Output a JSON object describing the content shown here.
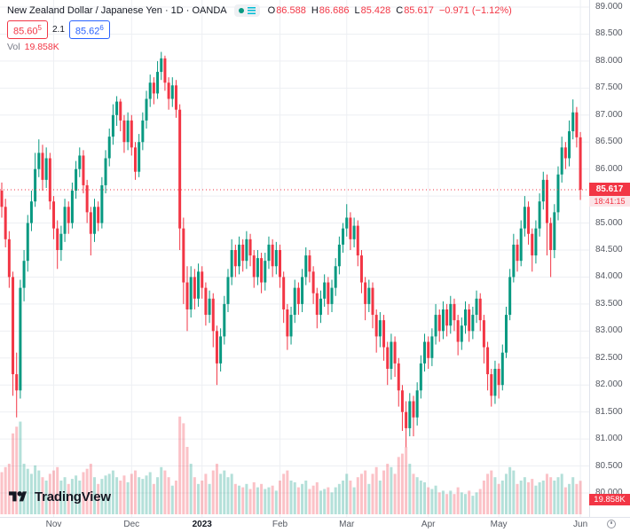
{
  "header": {
    "symbol_title": "New Zealand Dollar / Japanese Yen · 1D · OANDA",
    "ohlc": {
      "open_label": "O",
      "open": "86.588",
      "high_label": "H",
      "high": "86.686",
      "low_label": "L",
      "low": "85.428",
      "close_label": "C",
      "close": "85.617",
      "change": "−0.971 (−1.12%)"
    },
    "sell_price_main": "85.60",
    "sell_price_sup": "5",
    "spread": "2.1",
    "buy_price_main": "85.62",
    "buy_price_sup": "6",
    "volume_label": "Vol",
    "volume_value": "19.858K"
  },
  "price_axis_label": {
    "price": "85.617",
    "countdown": "18:41:15"
  },
  "volume_axis_label": "19.858K",
  "watermark": {
    "logo_text": "TradingView"
  },
  "icons": {
    "market_status": "market-open-dot-icon",
    "legend_menu": "legend-menu-icon",
    "clock": "clock-icon",
    "logo": "tradingview-logo"
  },
  "colors": {
    "up": "#089981",
    "down": "#f23645",
    "volume_up": "rgba(8,153,129,0.30)",
    "volume_down": "rgba(242,54,69,0.30)",
    "grid": "#edeff3",
    "accent_buy": "#2962ff",
    "axis_text": "#555962"
  },
  "chart_data": {
    "type": "candlestick",
    "title": "New Zealand Dollar / Japanese Yen, 1D, OANDA",
    "legend_position": "top-left",
    "grid": true,
    "current_price": 85.617,
    "current_volume_k": 19.858,
    "y_axis": {
      "min": 80.0,
      "max": 89.0,
      "step": 0.5,
      "tick_labels": [
        "89.000",
        "88.500",
        "88.000",
        "87.500",
        "87.000",
        "86.500",
        "86.000",
        "85.500",
        "85.000",
        "84.500",
        "84.000",
        "83.500",
        "83.000",
        "82.500",
        "82.000",
        "81.500",
        "81.000",
        "80.500",
        "80.000"
      ]
    },
    "x_axis": {
      "labels": [
        {
          "text": "Nov",
          "index": 14
        },
        {
          "text": "Dec",
          "index": 35
        },
        {
          "text": "2023",
          "index": 54,
          "bold": true
        },
        {
          "text": "Feb",
          "index": 75
        },
        {
          "text": "Mar",
          "index": 93
        },
        {
          "text": "Apr",
          "index": 115
        },
        {
          "text": "May",
          "index": 134
        },
        {
          "text": "Jun",
          "index": 156
        }
      ]
    },
    "candles_format": "[open, high, low, close, volume_k]",
    "candles": [
      [
        85.6,
        85.75,
        85.1,
        85.3,
        25
      ],
      [
        85.3,
        85.45,
        84.55,
        84.7,
        28
      ],
      [
        84.7,
        84.85,
        83.8,
        84.0,
        30
      ],
      [
        84.0,
        84.1,
        81.8,
        82.2,
        48
      ],
      [
        82.2,
        82.6,
        81.4,
        81.9,
        52
      ],
      [
        81.9,
        83.95,
        81.75,
        83.8,
        55
      ],
      [
        83.8,
        84.5,
        83.55,
        84.3,
        30
      ],
      [
        84.3,
        85.15,
        84.1,
        85.0,
        27
      ],
      [
        85.0,
        85.6,
        84.85,
        85.4,
        24
      ],
      [
        85.4,
        86.3,
        85.3,
        86.0,
        29
      ],
      [
        86.0,
        86.55,
        85.85,
        86.3,
        26
      ],
      [
        86.3,
        86.45,
        85.6,
        85.8,
        22
      ],
      [
        85.8,
        86.4,
        85.65,
        86.2,
        20
      ],
      [
        86.2,
        86.3,
        85.25,
        85.4,
        24
      ],
      [
        85.4,
        85.5,
        84.7,
        84.9,
        26
      ],
      [
        84.9,
        85.05,
        84.15,
        84.5,
        28
      ],
      [
        84.5,
        84.95,
        84.3,
        84.8,
        20
      ],
      [
        84.8,
        85.45,
        84.65,
        85.3,
        22
      ],
      [
        85.3,
        85.4,
        84.8,
        85.0,
        18
      ],
      [
        85.0,
        85.75,
        84.9,
        85.6,
        21
      ],
      [
        85.6,
        86.15,
        85.45,
        86.0,
        23
      ],
      [
        86.0,
        86.4,
        85.85,
        86.25,
        20
      ],
      [
        86.25,
        86.35,
        85.55,
        85.7,
        25
      ],
      [
        85.7,
        85.8,
        85.0,
        85.2,
        27
      ],
      [
        85.2,
        85.3,
        84.4,
        84.8,
        30
      ],
      [
        84.8,
        85.45,
        84.65,
        85.3,
        22
      ],
      [
        85.3,
        85.4,
        84.85,
        85.0,
        18
      ],
      [
        85.0,
        85.85,
        84.9,
        85.7,
        21
      ],
      [
        85.7,
        86.35,
        85.55,
        86.2,
        23
      ],
      [
        86.2,
        86.75,
        86.05,
        86.6,
        24
      ],
      [
        86.6,
        87.2,
        86.45,
        87.0,
        26
      ],
      [
        87.0,
        87.35,
        86.8,
        87.25,
        22
      ],
      [
        87.25,
        87.3,
        86.7,
        86.9,
        20
      ],
      [
        86.9,
        87.0,
        86.3,
        86.5,
        23
      ],
      [
        86.5,
        87.05,
        86.35,
        86.9,
        19
      ],
      [
        86.9,
        87.0,
        86.25,
        86.4,
        24
      ],
      [
        86.4,
        86.5,
        85.8,
        85.95,
        26
      ],
      [
        85.95,
        86.65,
        85.85,
        86.5,
        22
      ],
      [
        86.5,
        87.05,
        86.35,
        86.9,
        21
      ],
      [
        86.9,
        87.45,
        86.75,
        87.3,
        23
      ],
      [
        87.3,
        87.75,
        87.15,
        87.6,
        25
      ],
      [
        87.6,
        87.7,
        87.2,
        87.4,
        18
      ],
      [
        87.4,
        88.0,
        87.3,
        87.8,
        22
      ],
      [
        87.8,
        88.17,
        87.65,
        88.05,
        28
      ],
      [
        88.05,
        88.1,
        87.45,
        87.6,
        26
      ],
      [
        87.6,
        87.7,
        87.1,
        87.3,
        22
      ],
      [
        87.3,
        87.7,
        87.15,
        87.55,
        17
      ],
      [
        87.55,
        87.65,
        86.95,
        87.1,
        20
      ],
      [
        87.1,
        87.2,
        84.5,
        84.9,
        58
      ],
      [
        84.9,
        85.1,
        83.5,
        83.9,
        54
      ],
      [
        83.9,
        84.2,
        83.0,
        83.4,
        40
      ],
      [
        83.4,
        84.2,
        83.25,
        84.0,
        30
      ],
      [
        84.0,
        84.15,
        83.4,
        83.6,
        22
      ],
      [
        83.6,
        84.25,
        83.45,
        84.1,
        18
      ],
      [
        84.1,
        84.2,
        83.6,
        83.8,
        20
      ],
      [
        83.8,
        83.9,
        83.1,
        83.3,
        24
      ],
      [
        83.3,
        83.75,
        83.15,
        83.6,
        18
      ],
      [
        83.6,
        83.7,
        82.7,
        83.0,
        26
      ],
      [
        83.0,
        83.1,
        82.0,
        82.4,
        30
      ],
      [
        82.4,
        83.05,
        82.25,
        82.9,
        24
      ],
      [
        82.9,
        83.65,
        82.75,
        83.5,
        26
      ],
      [
        83.5,
        84.15,
        83.35,
        84.0,
        22
      ],
      [
        84.0,
        84.7,
        83.85,
        84.5,
        24
      ],
      [
        84.5,
        84.6,
        84.0,
        84.2,
        18
      ],
      [
        84.2,
        84.75,
        84.05,
        84.6,
        17
      ],
      [
        84.6,
        84.7,
        84.1,
        84.3,
        16
      ],
      [
        84.3,
        84.85,
        84.15,
        84.7,
        18
      ],
      [
        84.7,
        84.8,
        84.2,
        84.4,
        15
      ],
      [
        84.4,
        84.5,
        83.8,
        84.0,
        19
      ],
      [
        84.0,
        84.5,
        83.85,
        84.35,
        16
      ],
      [
        84.35,
        84.45,
        83.7,
        83.9,
        18
      ],
      [
        83.9,
        84.45,
        83.75,
        84.3,
        15
      ],
      [
        84.3,
        84.75,
        84.15,
        84.6,
        16
      ],
      [
        84.6,
        84.7,
        84.0,
        84.2,
        17
      ],
      [
        84.2,
        84.65,
        84.05,
        84.5,
        14
      ],
      [
        84.5,
        84.6,
        83.8,
        84.0,
        20
      ],
      [
        84.0,
        84.1,
        83.15,
        83.4,
        24
      ],
      [
        83.4,
        83.5,
        82.65,
        82.9,
        26
      ],
      [
        82.9,
        83.45,
        82.75,
        83.3,
        20
      ],
      [
        83.3,
        83.95,
        83.15,
        83.8,
        19
      ],
      [
        83.8,
        83.9,
        83.3,
        83.5,
        16
      ],
      [
        83.5,
        84.15,
        83.35,
        84.0,
        18
      ],
      [
        84.0,
        84.55,
        83.85,
        84.4,
        20
      ],
      [
        84.4,
        84.5,
        83.9,
        84.1,
        15
      ],
      [
        84.1,
        84.2,
        83.5,
        83.7,
        17
      ],
      [
        83.7,
        83.8,
        83.05,
        83.3,
        19
      ],
      [
        83.3,
        83.75,
        83.15,
        83.6,
        14
      ],
      [
        83.6,
        84.05,
        83.45,
        83.9,
        15
      ],
      [
        83.9,
        84.0,
        83.3,
        83.5,
        16
      ],
      [
        83.5,
        83.95,
        83.35,
        83.8,
        13
      ],
      [
        83.8,
        84.35,
        83.65,
        84.2,
        16
      ],
      [
        84.2,
        84.75,
        84.05,
        84.6,
        18
      ],
      [
        84.6,
        85.0,
        84.45,
        84.9,
        20
      ],
      [
        84.9,
        85.35,
        84.75,
        85.1,
        24
      ],
      [
        85.1,
        85.2,
        84.5,
        84.7,
        20
      ],
      [
        84.7,
        85.1,
        84.55,
        84.95,
        16
      ],
      [
        84.95,
        85.05,
        84.2,
        84.4,
        22
      ],
      [
        84.4,
        84.5,
        83.7,
        83.9,
        24
      ],
      [
        83.9,
        84.0,
        83.2,
        83.5,
        26
      ],
      [
        83.5,
        83.95,
        83.35,
        83.8,
        18
      ],
      [
        83.8,
        83.9,
        83.05,
        83.3,
        24
      ],
      [
        83.3,
        83.4,
        82.6,
        82.9,
        28
      ],
      [
        82.9,
        83.35,
        82.7,
        83.2,
        20
      ],
      [
        83.2,
        83.3,
        82.45,
        82.7,
        26
      ],
      [
        82.7,
        82.8,
        82.0,
        82.3,
        30
      ],
      [
        82.3,
        82.95,
        82.1,
        82.8,
        28
      ],
      [
        82.8,
        82.9,
        82.15,
        82.4,
        24
      ],
      [
        82.4,
        82.5,
        81.6,
        81.9,
        34
      ],
      [
        81.9,
        82.0,
        81.15,
        81.5,
        36
      ],
      [
        81.5,
        81.7,
        80.85,
        81.2,
        40
      ],
      [
        81.2,
        81.85,
        81.05,
        81.7,
        30
      ],
      [
        81.7,
        81.8,
        81.05,
        81.4,
        24
      ],
      [
        81.4,
        82.05,
        81.25,
        81.9,
        22
      ],
      [
        81.9,
        82.55,
        81.75,
        82.4,
        20
      ],
      [
        82.4,
        82.95,
        82.25,
        82.8,
        19
      ],
      [
        82.8,
        82.9,
        82.3,
        82.5,
        16
      ],
      [
        82.5,
        83.05,
        82.35,
        82.9,
        15
      ],
      [
        82.9,
        83.5,
        82.75,
        83.3,
        17
      ],
      [
        83.3,
        83.4,
        82.8,
        83.0,
        13
      ],
      [
        83.0,
        83.55,
        82.85,
        83.4,
        14
      ],
      [
        83.4,
        83.5,
        82.9,
        83.1,
        12
      ],
      [
        83.1,
        83.65,
        82.95,
        83.5,
        14
      ],
      [
        83.5,
        83.6,
        83.0,
        83.2,
        12
      ],
      [
        83.2,
        83.3,
        82.55,
        82.8,
        16
      ],
      [
        82.8,
        83.25,
        82.65,
        83.1,
        13
      ],
      [
        83.1,
        83.55,
        82.95,
        83.4,
        12
      ],
      [
        83.4,
        83.5,
        82.8,
        83.0,
        14
      ],
      [
        83.0,
        83.45,
        82.85,
        83.3,
        11
      ],
      [
        83.3,
        83.75,
        83.15,
        83.6,
        13
      ],
      [
        83.6,
        83.7,
        83.0,
        83.2,
        15
      ],
      [
        83.2,
        83.3,
        82.4,
        82.7,
        20
      ],
      [
        82.7,
        82.8,
        81.9,
        82.2,
        24
      ],
      [
        82.2,
        82.3,
        81.6,
        81.8,
        26
      ],
      [
        81.8,
        82.45,
        81.65,
        82.3,
        22
      ],
      [
        82.3,
        82.4,
        81.75,
        82.0,
        18
      ],
      [
        82.0,
        82.75,
        81.9,
        82.6,
        20
      ],
      [
        82.6,
        83.45,
        82.5,
        83.3,
        24
      ],
      [
        83.3,
        84.15,
        83.2,
        84.0,
        28
      ],
      [
        84.0,
        84.8,
        83.9,
        84.6,
        26
      ],
      [
        84.6,
        84.7,
        84.1,
        84.3,
        18
      ],
      [
        84.3,
        85.05,
        84.2,
        84.9,
        20
      ],
      [
        84.9,
        85.5,
        84.75,
        85.3,
        22
      ],
      [
        85.3,
        85.4,
        84.6,
        84.8,
        19
      ],
      [
        84.8,
        84.9,
        84.1,
        84.4,
        21
      ],
      [
        84.4,
        85.05,
        84.25,
        84.9,
        17
      ],
      [
        84.9,
        85.55,
        84.75,
        85.4,
        19
      ],
      [
        85.4,
        85.95,
        85.25,
        85.8,
        20
      ],
      [
        85.8,
        85.9,
        84.4,
        85.0,
        24
      ],
      [
        85.0,
        85.1,
        84.0,
        84.5,
        22
      ],
      [
        84.5,
        85.35,
        84.35,
        85.2,
        20
      ],
      [
        85.2,
        86.05,
        85.05,
        85.9,
        22
      ],
      [
        85.9,
        86.6,
        85.75,
        86.4,
        24
      ],
      [
        86.4,
        86.5,
        86.0,
        86.2,
        16
      ],
      [
        86.2,
        86.9,
        86.05,
        86.7,
        18
      ],
      [
        86.7,
        87.29,
        86.55,
        87.05,
        22
      ],
      [
        87.05,
        87.15,
        86.4,
        86.588,
        18
      ],
      [
        86.588,
        86.686,
        85.428,
        85.617,
        19.858
      ]
    ]
  }
}
